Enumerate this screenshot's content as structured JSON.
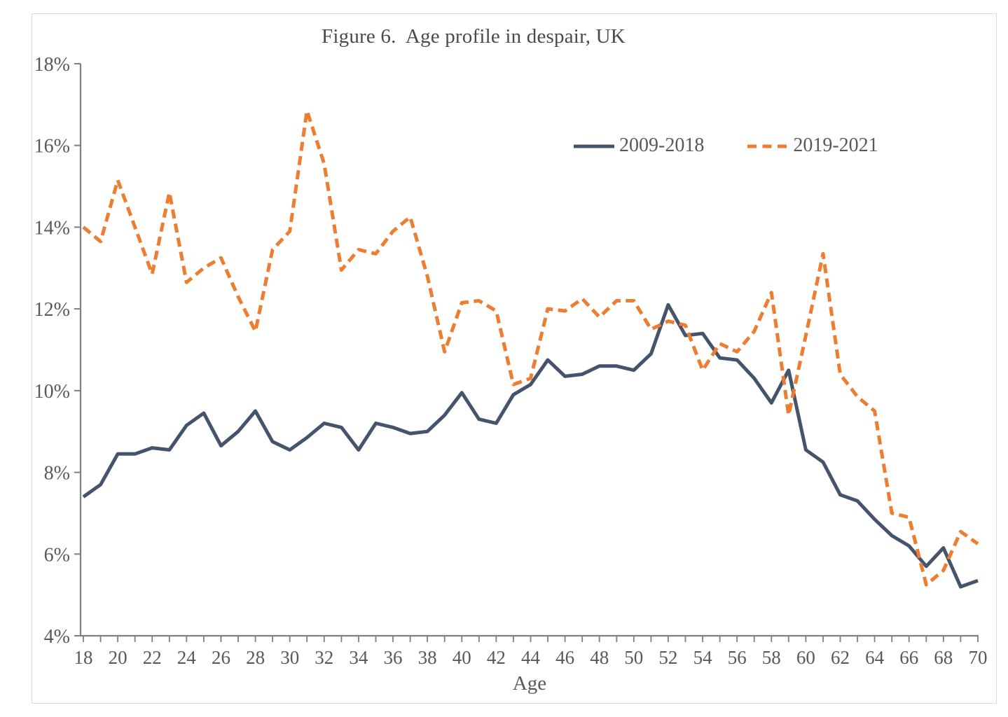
{
  "chart_data": {
    "type": "line",
    "title": "Figure 6.  Age profile in despair, UK",
    "xlabel": "Age",
    "ylabel": "",
    "xlim": [
      18,
      70
    ],
    "ylim": [
      4,
      18
    ],
    "grid": false,
    "legend_position": "inside-top-right",
    "x": [
      18,
      19,
      20,
      21,
      22,
      23,
      24,
      25,
      26,
      27,
      28,
      29,
      30,
      31,
      32,
      33,
      34,
      35,
      36,
      37,
      38,
      39,
      40,
      41,
      42,
      43,
      44,
      45,
      46,
      47,
      48,
      49,
      50,
      51,
      52,
      53,
      54,
      55,
      56,
      57,
      58,
      59,
      60,
      61,
      62,
      63,
      64,
      65,
      66,
      67,
      68,
      69,
      70
    ],
    "xticks": [
      {
        "value": 18,
        "label": "18"
      },
      {
        "value": 20,
        "label": "20"
      },
      {
        "value": 22,
        "label": "22"
      },
      {
        "value": 24,
        "label": "24"
      },
      {
        "value": 26,
        "label": "26"
      },
      {
        "value": 28,
        "label": "28"
      },
      {
        "value": 30,
        "label": "30"
      },
      {
        "value": 32,
        "label": "32"
      },
      {
        "value": 34,
        "label": "34"
      },
      {
        "value": 36,
        "label": "36"
      },
      {
        "value": 38,
        "label": "38"
      },
      {
        "value": 40,
        "label": "40"
      },
      {
        "value": 42,
        "label": "42"
      },
      {
        "value": 44,
        "label": "44"
      },
      {
        "value": 46,
        "label": "46"
      },
      {
        "value": 48,
        "label": "48"
      },
      {
        "value": 50,
        "label": "50"
      },
      {
        "value": 52,
        "label": "52"
      },
      {
        "value": 54,
        "label": "54"
      },
      {
        "value": 56,
        "label": "56"
      },
      {
        "value": 58,
        "label": "58"
      },
      {
        "value": 60,
        "label": "60"
      },
      {
        "value": 62,
        "label": "62"
      },
      {
        "value": 64,
        "label": "64"
      },
      {
        "value": 66,
        "label": "66"
      },
      {
        "value": 68,
        "label": "68"
      },
      {
        "value": 70,
        "label": "70"
      }
    ],
    "yticks": [
      {
        "value": 4,
        "label": "4%"
      },
      {
        "value": 6,
        "label": "6%"
      },
      {
        "value": 8,
        "label": "8%"
      },
      {
        "value": 10,
        "label": "10%"
      },
      {
        "value": 12,
        "label": "12%"
      },
      {
        "value": 14,
        "label": "14%"
      },
      {
        "value": 16,
        "label": "16%"
      },
      {
        "value": 18,
        "label": "18%"
      }
    ],
    "series": [
      {
        "name": "2009-2018",
        "style": "solid",
        "color": "#44546A",
        "values": [
          7.4,
          7.7,
          8.45,
          8.45,
          8.6,
          8.55,
          9.15,
          9.45,
          8.65,
          9.0,
          9.5,
          8.75,
          8.55,
          8.85,
          9.2,
          9.1,
          8.55,
          9.2,
          9.1,
          8.95,
          9.0,
          9.4,
          9.95,
          9.3,
          9.2,
          9.9,
          10.15,
          10.75,
          10.35,
          10.4,
          10.6,
          10.6,
          10.5,
          10.9,
          12.1,
          11.35,
          11.4,
          10.8,
          10.75,
          10.3,
          9.7,
          10.5,
          8.55,
          8.25,
          7.45,
          7.3,
          6.85,
          6.45,
          6.2,
          5.7,
          6.15,
          5.2,
          5.35
        ]
      },
      {
        "name": "2019-2021",
        "style": "dashed",
        "color": "#ED7D31",
        "values": [
          14.0,
          13.65,
          15.15,
          14.0,
          12.85,
          14.85,
          12.65,
          13.0,
          13.25,
          12.3,
          11.45,
          13.45,
          13.9,
          16.85,
          15.55,
          12.95,
          13.45,
          13.35,
          13.9,
          14.25,
          12.8,
          10.95,
          12.15,
          12.2,
          11.95,
          10.15,
          10.3,
          12.0,
          11.95,
          12.25,
          11.8,
          12.2,
          12.2,
          11.5,
          11.7,
          11.6,
          10.5,
          11.15,
          10.95,
          11.45,
          12.4,
          9.4,
          11.35,
          13.35,
          10.4,
          9.85,
          9.5,
          7.0,
          6.9,
          5.25,
          5.6,
          6.55,
          6.25
        ]
      }
    ],
    "colors": {
      "axis": "#7f7f7f",
      "tick_text": "#595959",
      "title_text": "#4a4a4a",
      "frame_border": "#d9d9d9",
      "background": "#ffffff"
    }
  }
}
